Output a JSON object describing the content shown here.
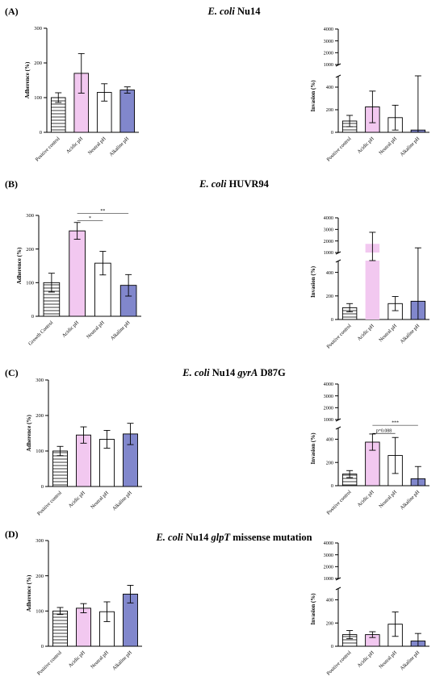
{
  "colors": {
    "pink": "#f2c8f0",
    "blue": "#8187cc",
    "white": "#ffffff",
    "stripe": "#222222"
  },
  "chart_data": [
    {
      "id": "A-adherence",
      "panel_label": "(A)",
      "title_species": "E. coli",
      "title_strain": "Nu14",
      "type": "bar",
      "ylabel": "Adherence (%)",
      "ylim": [
        0,
        300
      ],
      "yticks": [
        "0",
        "100",
        "200",
        "300"
      ],
      "categories": [
        "Positive control",
        "Acidic pH",
        "Neutral pH",
        "Alkaline pH"
      ],
      "fills": [
        "stripes",
        "pink",
        "white",
        "blue"
      ],
      "values": [
        100,
        170,
        115,
        122
      ],
      "errors": [
        14,
        57,
        25,
        9
      ],
      "significance": []
    },
    {
      "id": "A-invasion",
      "type": "bar",
      "broken_axis": true,
      "ylabel": "Invasion (%)",
      "ylim_lower": [
        0,
        500
      ],
      "ylim_upper": [
        1000,
        4000
      ],
      "yticks_lower": [
        "0",
        "200",
        "400"
      ],
      "yticks_upper": [
        "1000",
        "2000",
        "3000",
        "4000"
      ],
      "categories": [
        "Positive control",
        "Acidic pH",
        "Neutral pH",
        "Alkaline pH"
      ],
      "fills": [
        "stripes",
        "pink",
        "white",
        "blue"
      ],
      "values": [
        100,
        225,
        130,
        20
      ],
      "errors": [
        50,
        140,
        110,
        560
      ],
      "significance": []
    },
    {
      "id": "B-adherence",
      "panel_label": "(B)",
      "title_species": "E. coli",
      "title_strain": "HUVR94",
      "type": "bar",
      "ylabel": "Adherence (%)",
      "ylim": [
        0,
        300
      ],
      "yticks": [
        "0",
        "100",
        "200",
        "300"
      ],
      "categories": [
        "Growth Control",
        "Acidic pH",
        "Neutral pH",
        "Alkaline pH"
      ],
      "fills": [
        "stripes",
        "pink",
        "white",
        "blue"
      ],
      "values": [
        100,
        254,
        158,
        92
      ],
      "errors": [
        28,
        25,
        35,
        32
      ],
      "significance": [
        {
          "from": 1,
          "to": 2,
          "label": "*",
          "y": 285
        },
        {
          "from": 1,
          "to": 3,
          "label": "**",
          "y": 306
        }
      ]
    },
    {
      "id": "B-invasion",
      "type": "bar",
      "broken_axis": true,
      "ylabel": "Invasion (%)",
      "ylim_lower": [
        0,
        500
      ],
      "ylim_upper": [
        1000,
        4000
      ],
      "yticks_lower": [
        "0",
        "200",
        "400"
      ],
      "yticks_upper": [
        "1000",
        "2000",
        "3000",
        "4000"
      ],
      "categories": [
        "Positive control",
        "Acidic pH",
        "Neutral pH",
        "Alkaline pH"
      ],
      "fills": [
        "stripes",
        "pink",
        "white",
        "blue"
      ],
      "values": [
        100,
        1750,
        135,
        155
      ],
      "errors": [
        35,
        1000,
        60,
        1250
      ],
      "significance": []
    },
    {
      "id": "C-adherence",
      "panel_label": "(C)",
      "title_species": "E. coli",
      "title_strain": "Nu14",
      "title_gene": "gyrA",
      "title_suffix": "D87G",
      "type": "bar",
      "ylabel": "Adherence (%)",
      "ylim": [
        0,
        300
      ],
      "yticks": [
        "0",
        "100",
        "200",
        "300"
      ],
      "categories": [
        "Positive control",
        "Acidic pH",
        "Neutral pH",
        "Alkaline pH"
      ],
      "fills": [
        "stripes",
        "pink",
        "white",
        "blue"
      ],
      "values": [
        100,
        145,
        133,
        148
      ],
      "errors": [
        13,
        23,
        25,
        30
      ],
      "significance": []
    },
    {
      "id": "C-invasion",
      "type": "bar",
      "broken_axis": true,
      "ylabel": "Invasion (%)",
      "ylim_lower": [
        0,
        500
      ],
      "ylim_upper": [
        1000,
        4000
      ],
      "yticks_lower": [
        "0",
        "200",
        "400"
      ],
      "yticks_upper": [
        "1000",
        "2000",
        "3000",
        "4000"
      ],
      "categories": [
        "Positive control",
        "Acidic pH",
        "Neutral pH",
        "Alkaline pH"
      ],
      "fills": [
        "stripes",
        "pink",
        "white",
        "blue"
      ],
      "values": [
        100,
        375,
        260,
        60
      ],
      "errors": [
        30,
        70,
        155,
        105
      ],
      "significance": [
        {
          "from": 1,
          "to": 2,
          "label": "p=0.088",
          "y": 450
        },
        {
          "from": 1,
          "to": 3,
          "label": "***",
          "y": 520
        }
      ]
    },
    {
      "id": "D-adherence",
      "panel_label": "(D)",
      "title_species": "E. coli",
      "title_strain": "Nu14",
      "title_gene": "glpT",
      "title_suffix": "missense mutation",
      "type": "bar",
      "ylabel": "Adherence (%)",
      "ylim": [
        0,
        300
      ],
      "yticks": [
        "0",
        "100",
        "200",
        "300"
      ],
      "categories": [
        "Positive control",
        "Acidic pH",
        "Neutral pH",
        "Alkaline pH"
      ],
      "fills": [
        "stripes",
        "pink",
        "white",
        "blue"
      ],
      "values": [
        100,
        108,
        98,
        148
      ],
      "errors": [
        10,
        13,
        28,
        25
      ],
      "significance": []
    },
    {
      "id": "D-invasion",
      "type": "bar",
      "broken_axis": true,
      "ylabel": "Invasion (%)",
      "ylim_lower": [
        0,
        500
      ],
      "ylim_upper": [
        1000,
        4000
      ],
      "yticks_lower": [
        "0",
        "200",
        "400"
      ],
      "yticks_upper": [
        "1000",
        "2000",
        "3000",
        "4000"
      ],
      "categories": [
        "Positive control",
        "Acidic pH",
        "Neutral pH",
        "Alkaline pH"
      ],
      "fills": [
        "stripes",
        "pink",
        "white",
        "blue"
      ],
      "values": [
        100,
        100,
        190,
        45
      ],
      "errors": [
        35,
        25,
        105,
        65
      ],
      "significance": []
    }
  ]
}
